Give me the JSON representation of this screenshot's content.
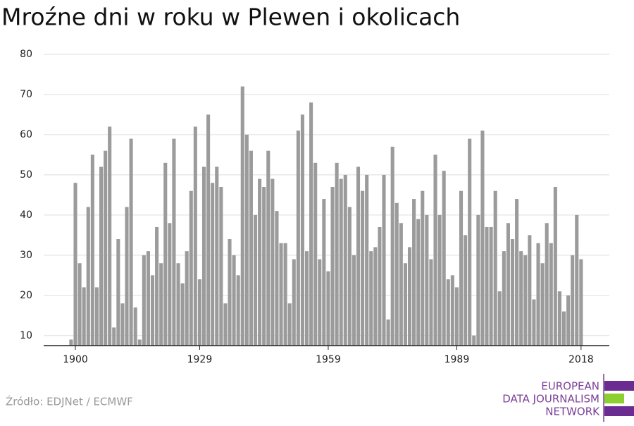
{
  "chart_data": {
    "type": "bar",
    "title": "Mroźne dni w roku w Plewen i okolicach",
    "source": "Źródło: EDJNet / ECMWF",
    "logo": [
      "EUROPEAN",
      "DATA JOURNALISM",
      "NETWORK"
    ],
    "color": "#9b9b9b",
    "x": [
      1899,
      1900,
      1901,
      1902,
      1903,
      1904,
      1905,
      1906,
      1907,
      1908,
      1909,
      1910,
      1911,
      1912,
      1913,
      1914,
      1915,
      1916,
      1917,
      1918,
      1919,
      1920,
      1921,
      1922,
      1923,
      1924,
      1925,
      1926,
      1927,
      1928,
      1929,
      1930,
      1931,
      1932,
      1933,
      1934,
      1935,
      1936,
      1937,
      1938,
      1939,
      1940,
      1941,
      1942,
      1943,
      1944,
      1945,
      1946,
      1947,
      1948,
      1949,
      1950,
      1951,
      1952,
      1953,
      1954,
      1955,
      1956,
      1957,
      1958,
      1959,
      1960,
      1961,
      1962,
      1963,
      1964,
      1965,
      1966,
      1967,
      1968,
      1969,
      1970,
      1971,
      1972,
      1973,
      1974,
      1975,
      1976,
      1977,
      1978,
      1979,
      1980,
      1981,
      1982,
      1983,
      1984,
      1985,
      1986,
      1987,
      1988,
      1989,
      1990,
      1991,
      1992,
      1993,
      1994,
      1995,
      1996,
      1997,
      1998,
      1999,
      2000,
      2001,
      2002,
      2003,
      2004,
      2005,
      2006,
      2007,
      2008,
      2009,
      2010,
      2011,
      2012,
      2013,
      2014,
      2015,
      2016,
      2017,
      2018
    ],
    "values": [
      9,
      48,
      28,
      22,
      42,
      55,
      22,
      52,
      56,
      62,
      12,
      34,
      18,
      42,
      59,
      17,
      9,
      30,
      31,
      25,
      37,
      28,
      53,
      38,
      59,
      28,
      23,
      31,
      46,
      62,
      24,
      52,
      65,
      48,
      52,
      47,
      18,
      34,
      30,
      25,
      72,
      60,
      56,
      40,
      49,
      47,
      56,
      49,
      41,
      33,
      33,
      18,
      29,
      61,
      65,
      31,
      68,
      53,
      29,
      44,
      26,
      47,
      53,
      49,
      50,
      42,
      30,
      52,
      46,
      50,
      31,
      32,
      37,
      50,
      14,
      57,
      43,
      38,
      28,
      32,
      44,
      39,
      46,
      40,
      29,
      55,
      40,
      51,
      24,
      25,
      22,
      46,
      35,
      59,
      10,
      40,
      61,
      37,
      37,
      46,
      21,
      31,
      38,
      34,
      44,
      31,
      30,
      35,
      19,
      33,
      28,
      38,
      33,
      47,
      21,
      16,
      20,
      30,
      40,
      29
    ],
    "xlim": [
      1892.6,
      2024.6
    ],
    "xticks": [
      1900,
      1929,
      1959,
      1989,
      2018
    ],
    "ylim": [
      7.5,
      80
    ],
    "yticks": [
      10,
      20,
      30,
      40,
      50,
      60,
      70,
      80
    ],
    "grid": true
  }
}
